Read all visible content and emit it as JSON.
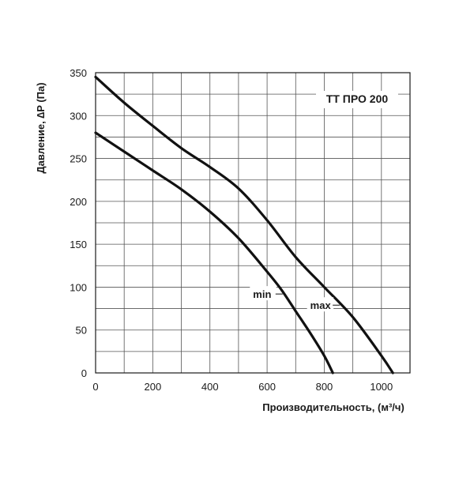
{
  "chart_data": {
    "type": "line",
    "title": "ТТ ПРО 200",
    "xlabel": "Производительность, (м³/ч)",
    "ylabel": "Давление, ∆P (Па)",
    "xlim": [
      0,
      1100
    ],
    "ylim": [
      0,
      350
    ],
    "x_ticks": [
      "0",
      "200",
      "400",
      "600",
      "800",
      "1000"
    ],
    "y_ticks": [
      "0",
      "50",
      "100",
      "150",
      "200",
      "250",
      "300",
      "350"
    ],
    "grid": true,
    "legend": "none",
    "series": [
      {
        "name": "max",
        "x": [
          0,
          100,
          200,
          300,
          400,
          500,
          600,
          700,
          800,
          900,
          1000,
          1040
        ],
        "y": [
          345,
          315,
          288,
          262,
          240,
          215,
          178,
          135,
          100,
          65,
          20,
          0
        ]
      },
      {
        "name": "min",
        "x": [
          0,
          100,
          200,
          300,
          400,
          500,
          600,
          650,
          700,
          750,
          800,
          830
        ],
        "y": [
          280,
          258,
          236,
          214,
          188,
          157,
          118,
          97,
          72,
          47,
          20,
          0
        ]
      }
    ],
    "annotations": [
      {
        "text": "max",
        "series": "max",
        "x": 860
      },
      {
        "text": "min",
        "series": "min",
        "x": 660
      }
    ]
  }
}
